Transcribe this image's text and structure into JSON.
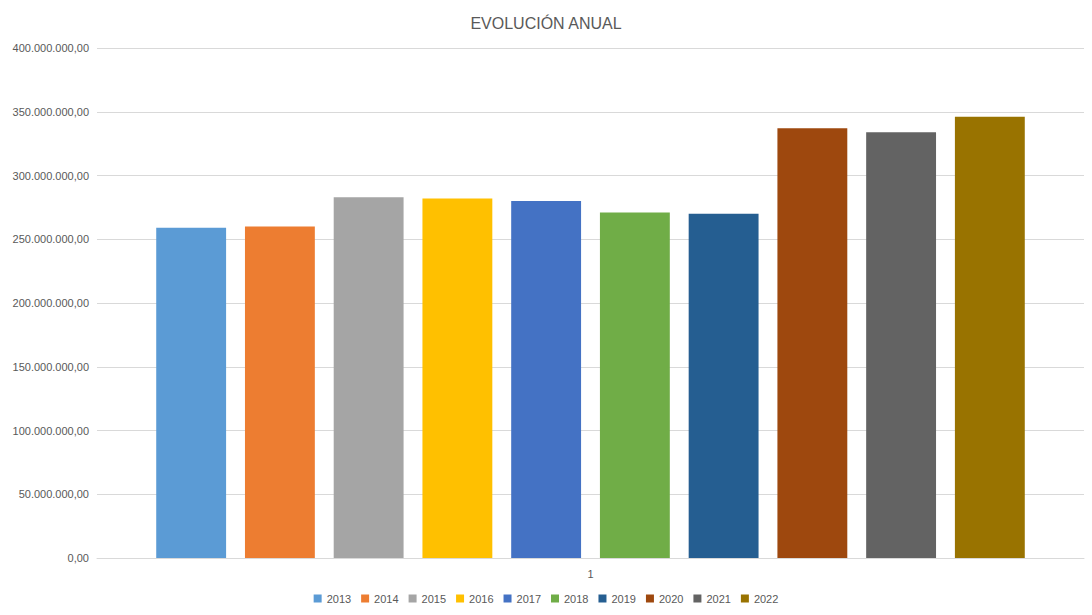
{
  "chart_data": {
    "type": "bar",
    "title": "EVOLUCIÓN ANUAL",
    "categories": [
      "1"
    ],
    "series": [
      {
        "name": "2013",
        "color": "#5b9bd5",
        "values": [
          259000000
        ]
      },
      {
        "name": "2014",
        "color": "#ed7d31",
        "values": [
          260000000
        ]
      },
      {
        "name": "2015",
        "color": "#a5a5a5",
        "values": [
          283000000
        ]
      },
      {
        "name": "2016",
        "color": "#ffc000",
        "values": [
          282000000
        ]
      },
      {
        "name": "2017",
        "color": "#4472c4",
        "values": [
          280000000
        ]
      },
      {
        "name": "2018",
        "color": "#70ad47",
        "values": [
          271000000
        ]
      },
      {
        "name": "2019",
        "color": "#255e91",
        "values": [
          270000000
        ]
      },
      {
        "name": "2020",
        "color": "#9e480e",
        "values": [
          337000000
        ]
      },
      {
        "name": "2021",
        "color": "#636363",
        "values": [
          334000000
        ]
      },
      {
        "name": "2022",
        "color": "#997300",
        "values": [
          346000000
        ]
      }
    ],
    "ylim": [
      0,
      400000000
    ],
    "yticks": [
      {
        "value": 0,
        "label": "0,00"
      },
      {
        "value": 50000000,
        "label": "50.000.000,00"
      },
      {
        "value": 100000000,
        "label": "100.000.000,00"
      },
      {
        "value": 150000000,
        "label": "150.000.000,00"
      },
      {
        "value": 200000000,
        "label": "200.000.000,00"
      },
      {
        "value": 250000000,
        "label": "250.000.000,00"
      },
      {
        "value": 300000000,
        "label": "300.000.000,00"
      },
      {
        "value": 350000000,
        "label": "350.000.000,00"
      },
      {
        "value": 400000000,
        "label": "400.000.000,00"
      }
    ],
    "grid": true,
    "legend": "bottom"
  }
}
